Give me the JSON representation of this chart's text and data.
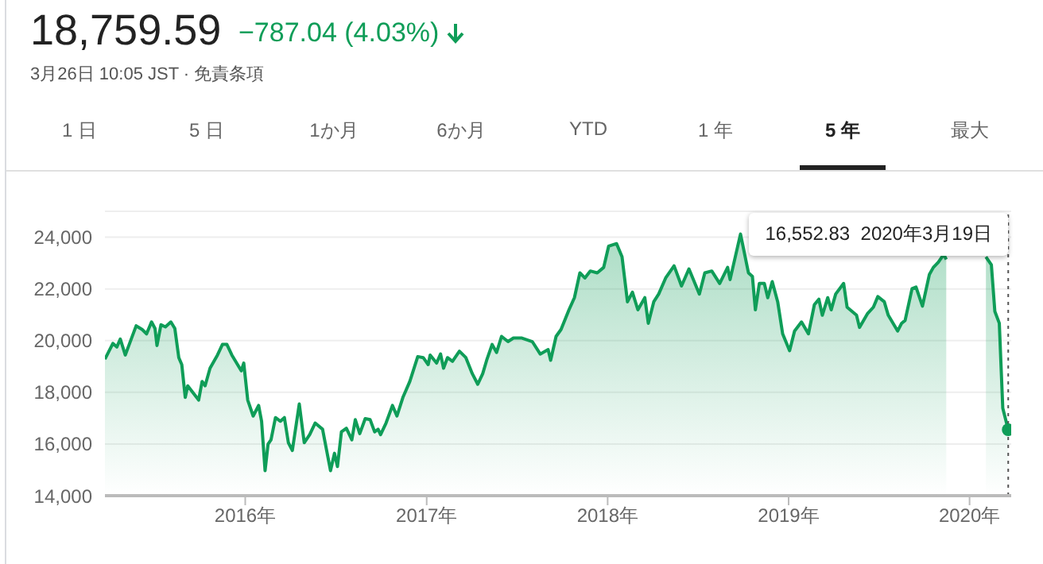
{
  "chart_data": {
    "type": "area",
    "title": "18,759.59",
    "subtitle": "−787.04 (4.03%)",
    "annotations": [
      "3月26日 10:05 JST · 免責条項",
      "1 日",
      "5 日",
      "1か月",
      "6か月",
      "YTD",
      "1 年",
      "5 年",
      "最大",
      "16,552.83  2020年3月19日"
    ],
    "x": [
      "2015-03-24",
      "2015-04-09",
      "2015-04-17",
      "2015-04-24",
      "2015-05-04",
      "2015-05-12",
      "2015-05-26",
      "2015-06-07",
      "2015-06-16",
      "2015-06-26",
      "2015-07-03",
      "2015-07-07",
      "2015-07-15",
      "2015-07-24",
      "2015-08-04",
      "2015-08-12",
      "2015-08-20",
      "2015-08-26",
      "2015-09-02",
      "2015-09-07",
      "2015-09-29",
      "2015-10-06",
      "2015-10-12",
      "2015-10-22",
      "2015-11-06",
      "2015-11-16",
      "2015-11-25",
      "2015-12-05",
      "2015-12-24",
      "2015-12-29",
      "2016-01-06",
      "2016-01-17",
      "2016-01-28",
      "2016-02-03",
      "2016-02-10",
      "2016-02-16",
      "2016-02-22",
      "2016-03-02",
      "2016-03-12",
      "2016-03-20",
      "2016-03-28",
      "2016-04-05",
      "2016-04-19",
      "2016-04-29",
      "2016-05-10",
      "2016-05-21",
      "2016-06-05",
      "2016-06-21",
      "2016-06-29",
      "2016-07-05",
      "2016-07-13",
      "2016-07-23",
      "2016-08-03",
      "2016-08-10",
      "2016-08-19",
      "2016-08-30",
      "2016-09-09",
      "2016-09-18",
      "2016-09-25",
      "2016-09-30",
      "2016-10-11",
      "2016-10-24",
      "2016-11-02",
      "2016-11-14",
      "2016-11-28",
      "2016-12-14",
      "2016-12-25",
      "2017-01-04",
      "2017-01-08",
      "2017-01-21",
      "2017-01-29",
      "2017-02-04",
      "2017-02-12",
      "2017-02-22",
      "2017-03-08",
      "2017-03-21",
      "2017-04-03",
      "2017-04-14",
      "2017-04-24",
      "2017-05-02",
      "2017-05-13",
      "2017-05-22",
      "2017-06-01",
      "2017-06-14",
      "2017-06-25",
      "2017-07-11",
      "2017-08-02",
      "2017-08-18",
      "2017-09-03",
      "2017-09-08",
      "2017-09-19",
      "2017-09-29",
      "2017-10-15",
      "2017-10-26",
      "2017-11-06",
      "2017-11-16",
      "2017-11-27",
      "2017-12-11",
      "2017-12-24",
      "2018-01-03",
      "2018-01-19",
      "2018-01-30",
      "2018-02-10",
      "2018-02-20",
      "2018-03-03",
      "2018-03-17",
      "2018-03-24",
      "2018-04-04",
      "2018-04-14",
      "2018-04-28",
      "2018-05-15",
      "2018-05-30",
      "2018-06-14",
      "2018-07-05",
      "2018-07-16",
      "2018-07-30",
      "2018-08-15",
      "2018-08-31",
      "2018-09-05",
      "2018-09-26",
      "2018-10-12",
      "2018-10-20",
      "2018-10-26",
      "2018-11-03",
      "2018-11-13",
      "2018-11-20",
      "2018-11-29",
      "2018-12-10",
      "2018-12-20",
      "2019-01-03",
      "2019-01-13",
      "2019-01-27",
      "2019-02-10",
      "2019-02-22",
      "2019-03-03",
      "2019-03-10",
      "2019-03-21",
      "2019-03-28",
      "2019-04-06",
      "2019-04-22",
      "2019-04-29",
      "2019-05-18",
      "2019-05-24",
      "2019-06-09",
      "2019-06-21",
      "2019-06-30",
      "2019-07-13",
      "2019-07-21",
      "2019-08-09",
      "2019-08-17",
      "2019-08-24",
      "2019-09-07",
      "2019-09-15",
      "2019-09-28",
      "2019-10-12",
      "2019-10-20",
      "2019-10-30",
      "2019-11-10",
      "2019-11-15",
      "2019-12-20",
      "2020-02-03",
      "2020-02-14",
      "2020-02-21",
      "2020-03-01",
      "2020-03-08",
      "2020-03-19"
    ],
    "series": [
      {
        "color": "#0f9d58",
        "values": [
          19280,
          19890,
          19750,
          20060,
          19440,
          19850,
          20570,
          20430,
          20260,
          20720,
          20470,
          19810,
          20610,
          20530,
          20720,
          20470,
          19340,
          19070,
          17800,
          18250,
          17700,
          18420,
          18250,
          18930,
          19440,
          19850,
          19850,
          19440,
          18830,
          19130,
          17700,
          17080,
          17490,
          16880,
          14970,
          15990,
          16160,
          17020,
          16880,
          17020,
          16050,
          15750,
          17550,
          16050,
          16360,
          16810,
          16570,
          14970,
          15640,
          15130,
          16470,
          16610,
          16160,
          16940,
          16400,
          16980,
          16940,
          16470,
          16570,
          16360,
          16810,
          17490,
          17080,
          17800,
          18420,
          19380,
          19340,
          19070,
          19440,
          19130,
          19480,
          18930,
          19340,
          19200,
          19590,
          19340,
          18720,
          18310,
          18720,
          19240,
          19850,
          19540,
          20160,
          19960,
          20100,
          20100,
          19960,
          19480,
          19650,
          19240,
          20160,
          20430,
          21190,
          21660,
          22620,
          22420,
          22690,
          22620,
          22830,
          23650,
          23750,
          23240,
          21500,
          21870,
          21190,
          21660,
          20670,
          21500,
          21800,
          22420,
          22890,
          22110,
          22770,
          21800,
          22620,
          22690,
          22210,
          22830,
          22360,
          24120,
          22620,
          22480,
          21190,
          22210,
          22210,
          21660,
          22280,
          21500,
          20260,
          19610,
          20370,
          20720,
          20260,
          21390,
          21600,
          20980,
          21660,
          21190,
          21800,
          22210,
          21290,
          20980,
          20510,
          21040,
          21290,
          21700,
          21500,
          20980,
          20370,
          20670,
          20780,
          22010,
          22070,
          21330,
          22560,
          22830,
          23030,
          23340,
          23140,
          null,
          23240,
          22930,
          21130,
          20670,
          17390,
          16550
        ]
      }
    ],
    "xlim": [
      "2015-03-24",
      "2020-03-25"
    ],
    "xticks": [
      {
        "value": "2016-01-01",
        "label": "2016年"
      },
      {
        "value": "2017-01-01",
        "label": "2017年"
      },
      {
        "value": "2018-01-01",
        "label": "2018年"
      },
      {
        "value": "2019-01-01",
        "label": "2019年"
      },
      {
        "value": "2020-01-01",
        "label": "2020年"
      }
    ],
    "ylim": [
      14000,
      25000
    ],
    "yticks": [
      {
        "value": 14000,
        "label": "14,000"
      },
      {
        "value": 16000,
        "label": "16,000"
      },
      {
        "value": 18000,
        "label": "18,000"
      },
      {
        "value": 20000,
        "label": "20,000"
      },
      {
        "value": 22000,
        "label": "22,000"
      },
      {
        "value": 24000,
        "label": "24,000"
      }
    ],
    "ref_lines": [
      {
        "axis": "x",
        "value": "2020-03-19",
        "line_style": "dotted",
        "color": "#555555"
      }
    ],
    "grid": "y",
    "legend": false
  }
}
